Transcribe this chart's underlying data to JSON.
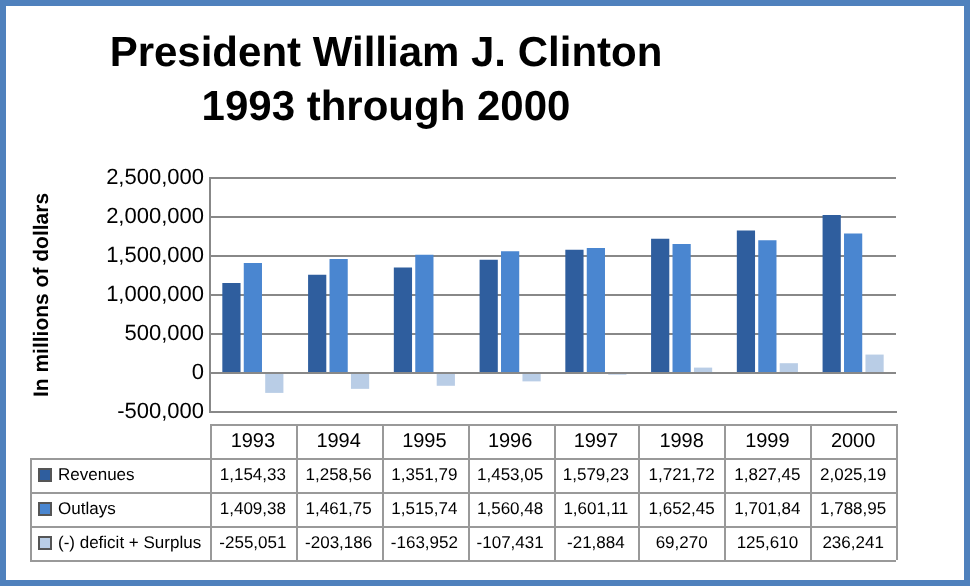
{
  "chart_data": {
    "type": "bar",
    "title": "President William J. Clinton",
    "subtitle": "1993 through 2000",
    "ylabel": "In millions of dollars",
    "categories": [
      "1993",
      "1994",
      "1995",
      "1996",
      "1997",
      "1998",
      "1999",
      "2000"
    ],
    "series": [
      {
        "name": "Revenues",
        "color": "#2f5e9e",
        "values": [
          1154330,
          1258560,
          1351790,
          1453050,
          1579230,
          1721720,
          1827450,
          2025190
        ],
        "value_labels": [
          "1,154,33",
          "1,258,56",
          "1,351,79",
          "1,453,05",
          "1,579,23",
          "1,721,72",
          "1,827,45",
          "2,025,19"
        ]
      },
      {
        "name": "Outlays",
        "color": "#4a86d0",
        "values": [
          1409380,
          1461750,
          1515740,
          1560480,
          1601110,
          1652450,
          1701840,
          1788950
        ],
        "value_labels": [
          "1,409,38",
          "1,461,75",
          "1,515,74",
          "1,560,48",
          "1,601,11",
          "1,652,45",
          "1,701,84",
          "1,788,95"
        ]
      },
      {
        "name": "(-) deficit + Surplus",
        "color": "#b9cde6",
        "values": [
          -255051,
          -203186,
          -163952,
          -107431,
          -21884,
          69270,
          125610,
          236241
        ],
        "value_labels": [
          "-255,051",
          "-203,186",
          "-163,952",
          "-107,431",
          "-21,884",
          "69,270",
          "125,610",
          "236,241"
        ]
      }
    ],
    "ylim": [
      -500000,
      2500000
    ],
    "yticks": [
      {
        "value": -500000,
        "label": "-500,000"
      },
      0,
      {
        "value": 500000,
        "label": "500,000"
      },
      {
        "value": 1000000,
        "label": "1,000,000"
      },
      {
        "value": 1500000,
        "label": "1,500,000"
      },
      {
        "value": 2000000,
        "label": "2,000,000"
      },
      {
        "value": 2500000,
        "label": "2,500,000"
      }
    ],
    "grid": "y",
    "legend": "bottom"
  }
}
